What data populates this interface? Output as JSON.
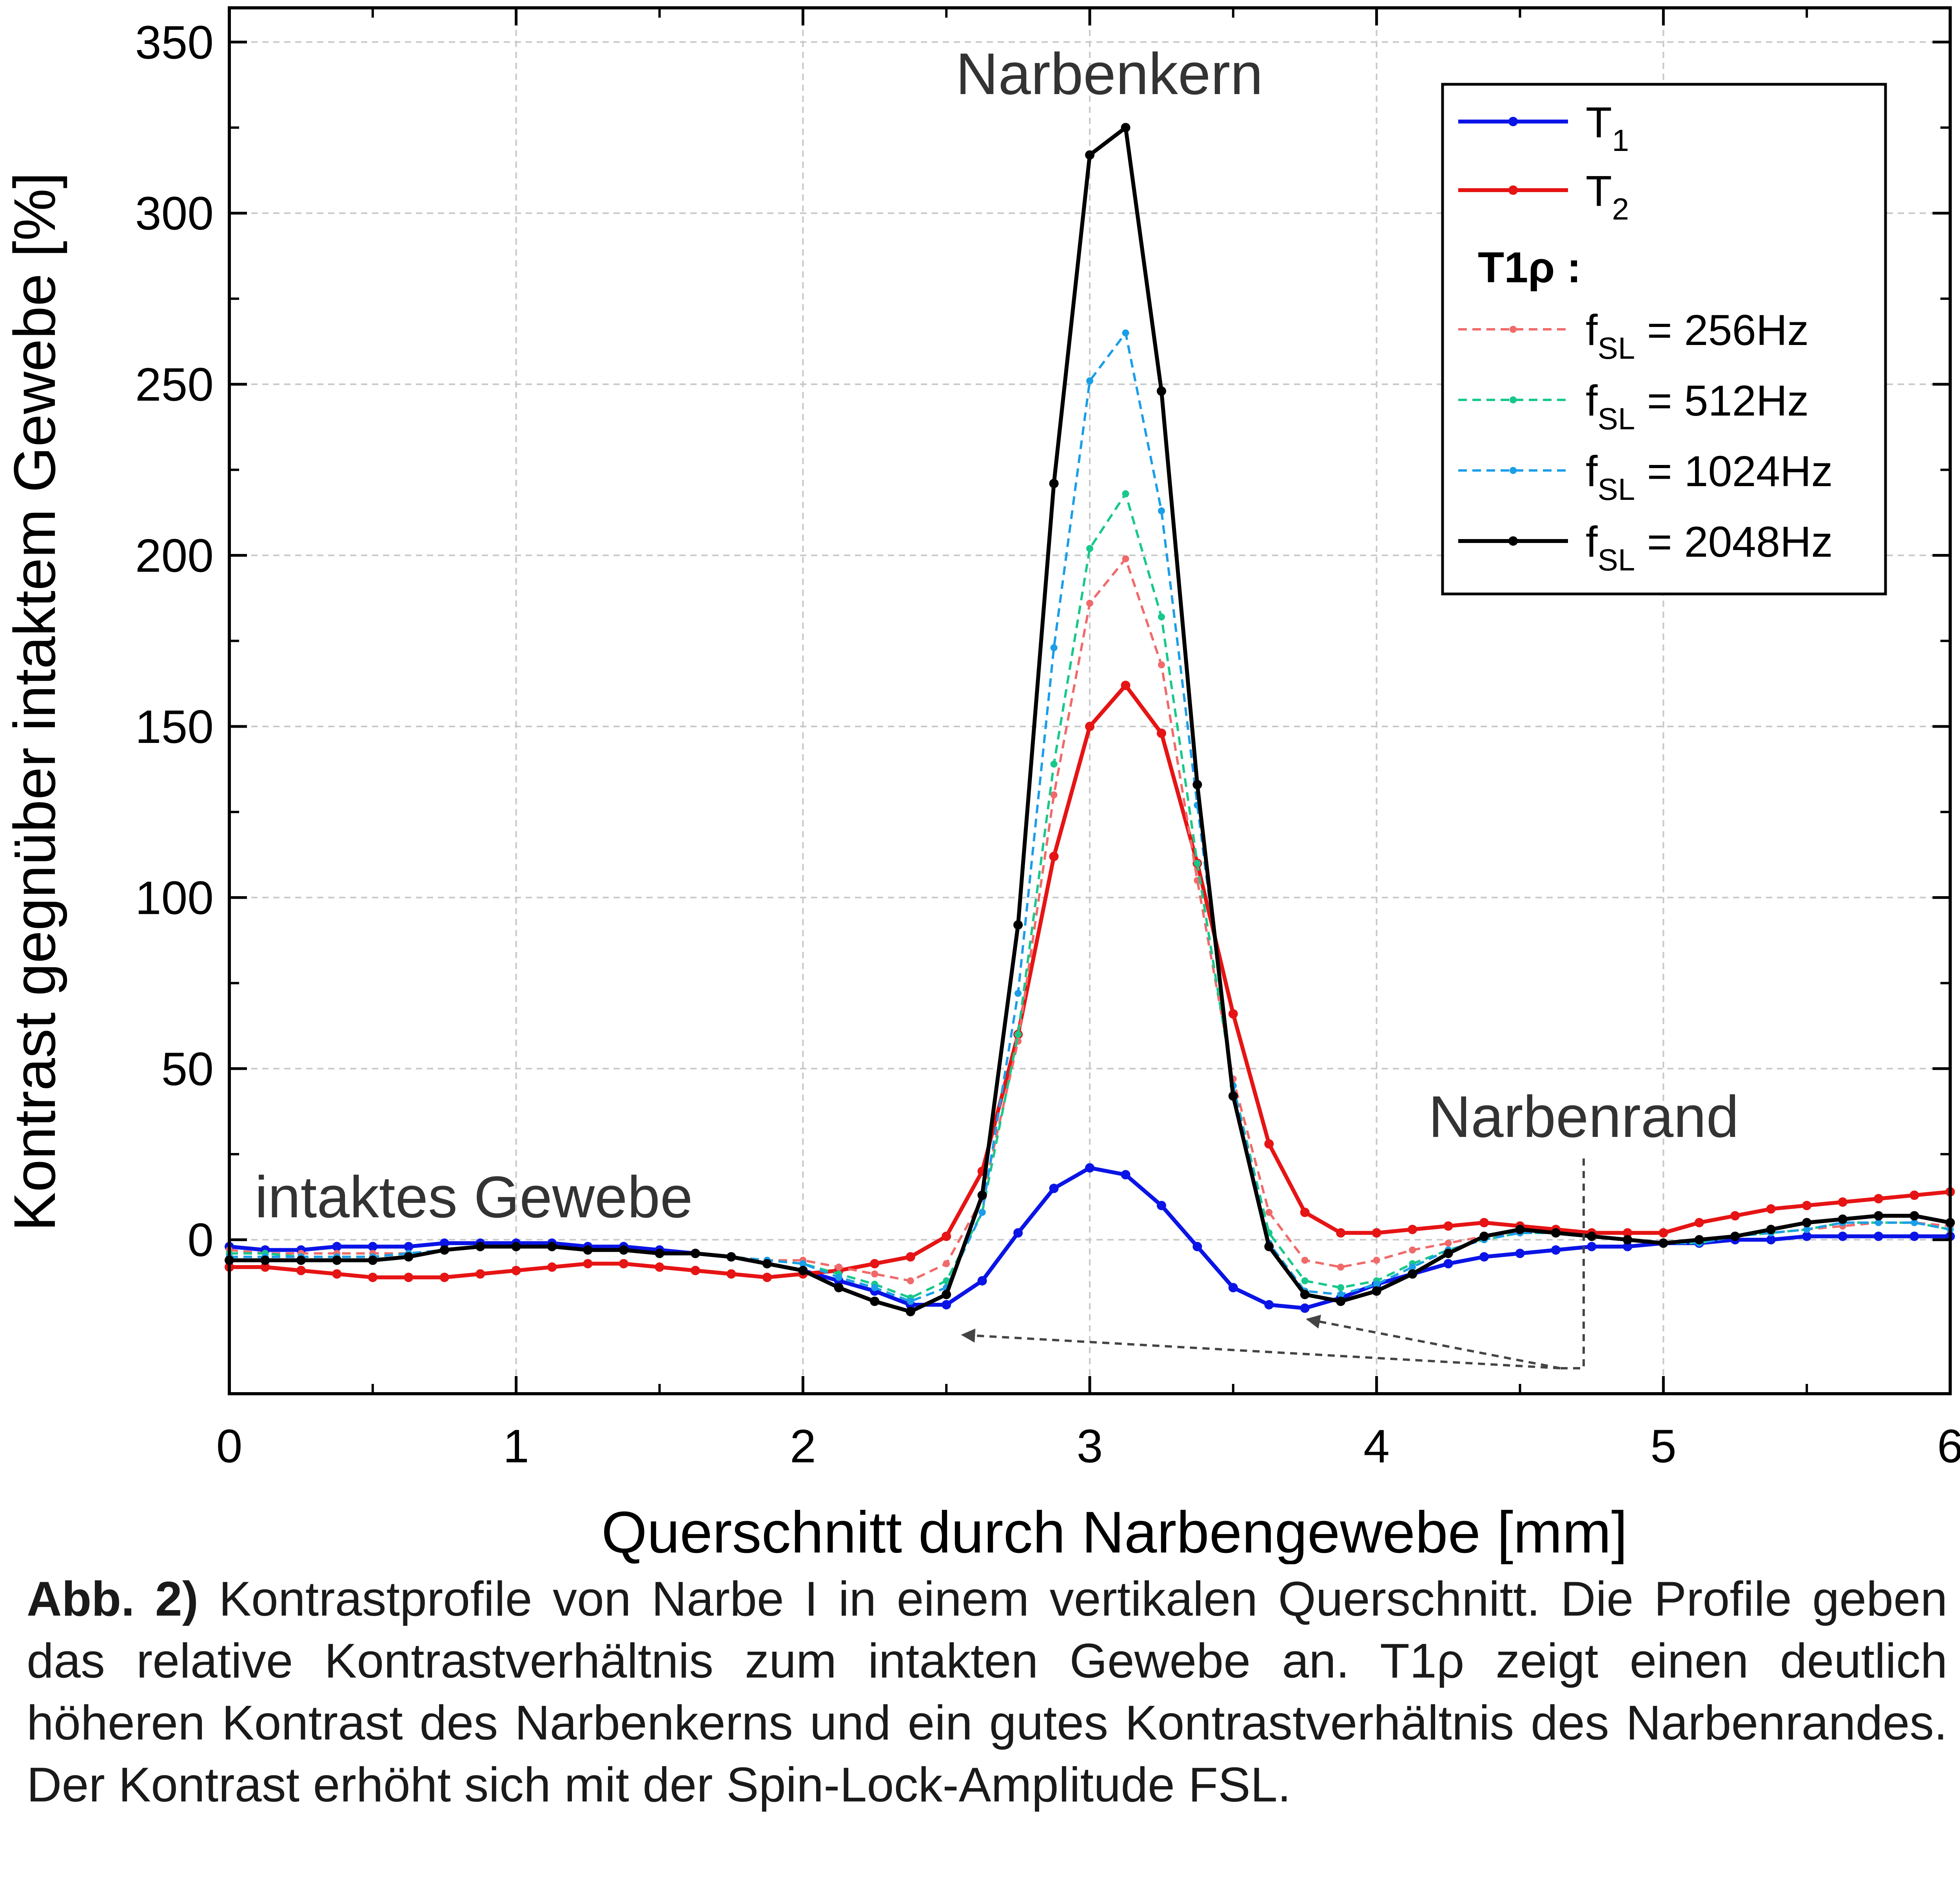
{
  "chart_data": {
    "type": "line",
    "xlabel": "Querschnitt durch Narbengewebe [mm]",
    "ylabel": "Kontrast gegnüber intaktem Gewebe [%]",
    "xlim": [
      0,
      6
    ],
    "ylim": [
      -45,
      360
    ],
    "x_ticks": [
      0,
      1,
      2,
      3,
      4,
      5,
      6
    ],
    "y_ticks": [
      0,
      50,
      100,
      150,
      200,
      250,
      300,
      350
    ],
    "grid": true,
    "legend_position": "top-right",
    "legend_group_title": "T1ρ :",
    "annotations": [
      "Narbenkern",
      "Narbenrand",
      "intaktes Gewebe"
    ],
    "x": [
      0,
      0.125,
      0.25,
      0.375,
      0.5,
      0.625,
      0.75,
      0.875,
      1.0,
      1.125,
      1.25,
      1.375,
      1.5,
      1.625,
      1.75,
      1.875,
      2.0,
      2.125,
      2.25,
      2.375,
      2.5,
      2.625,
      2.75,
      2.875,
      3.0,
      3.125,
      3.25,
      3.375,
      3.5,
      3.625,
      3.75,
      3.875,
      4.0,
      4.125,
      4.25,
      4.375,
      4.5,
      4.625,
      4.75,
      4.875,
      5.0,
      5.125,
      5.25,
      5.375,
      5.5,
      5.625,
      5.75,
      5.875,
      6.0
    ],
    "series": [
      {
        "name": "T",
        "sub": "1",
        "color": "#0a14e6",
        "dashed": false,
        "values": [
          -2,
          -3,
          -3,
          -2,
          -2,
          -2,
          -1,
          -1,
          -1,
          -1,
          -2,
          -2,
          -3,
          -4,
          -5,
          -7,
          -9,
          -12,
          -15,
          -19,
          -19,
          -12,
          2,
          15,
          21,
          19,
          10,
          -2,
          -14,
          -19,
          -20,
          -17,
          -13,
          -10,
          -7,
          -5,
          -4,
          -3,
          -2,
          -2,
          -1,
          -1,
          0,
          0,
          1,
          1,
          1,
          1,
          1
        ]
      },
      {
        "name": "T",
        "sub": "2",
        "color": "#e61414",
        "dashed": false,
        "values": [
          -8,
          -8,
          -9,
          -10,
          -11,
          -11,
          -11,
          -10,
          -9,
          -8,
          -7,
          -7,
          -8,
          -9,
          -10,
          -11,
          -10,
          -9,
          -7,
          -5,
          1,
          20,
          60,
          112,
          150,
          162,
          148,
          110,
          66,
          28,
          8,
          2,
          2,
          3,
          4,
          5,
          4,
          3,
          2,
          2,
          2,
          5,
          7,
          9,
          10,
          11,
          12,
          13,
          14
        ]
      },
      {
        "name": "f",
        "sub": "SL",
        "suffix": " = 256Hz",
        "color": "#f06a6a",
        "dashed": true,
        "values": [
          -3,
          -4,
          -4,
          -4,
          -4,
          -4,
          -3,
          -2,
          -2,
          -2,
          -3,
          -3,
          -4,
          -4,
          -5,
          -6,
          -6,
          -8,
          -10,
          -12,
          -7,
          12,
          58,
          130,
          186,
          199,
          168,
          105,
          47,
          8,
          -6,
          -8,
          -6,
          -3,
          -1,
          1,
          2,
          2,
          1,
          0,
          -1,
          0,
          1,
          2,
          3,
          4,
          5,
          5,
          4
        ]
      },
      {
        "name": "f",
        "sub": "SL",
        "suffix": " = 512Hz",
        "color": "#18c88a",
        "dashed": true,
        "values": [
          -4,
          -4,
          -5,
          -5,
          -5,
          -4,
          -3,
          -2,
          -2,
          -2,
          -3,
          -3,
          -4,
          -4,
          -5,
          -6,
          -7,
          -10,
          -13,
          -17,
          -12,
          8,
          60,
          139,
          202,
          218,
          182,
          110,
          45,
          2,
          -12,
          -14,
          -12,
          -7,
          -3,
          0,
          2,
          2,
          1,
          0,
          -1,
          -1,
          1,
          2,
          3,
          5,
          5,
          5,
          3
        ]
      },
      {
        "name": "f",
        "sub": "SL",
        "suffix": " = 1024Hz",
        "color": "#1a9ee8",
        "dashed": true,
        "values": [
          -5,
          -5,
          -5,
          -5,
          -5,
          -4,
          -3,
          -2,
          -2,
          -2,
          -3,
          -3,
          -4,
          -4,
          -5,
          -6,
          -7,
          -11,
          -14,
          -18,
          -14,
          8,
          72,
          173,
          251,
          265,
          213,
          127,
          45,
          -1,
          -15,
          -16,
          -13,
          -8,
          -3,
          0,
          2,
          2,
          1,
          0,
          -1,
          -1,
          1,
          2,
          3,
          5,
          5,
          5,
          3
        ]
      },
      {
        "name": "f",
        "sub": "SL",
        "suffix": " = 2048Hz",
        "color": "#000000",
        "dashed": false,
        "values": [
          -6,
          -6,
          -6,
          -6,
          -6,
          -5,
          -3,
          -2,
          -2,
          -2,
          -3,
          -3,
          -4,
          -4,
          -5,
          -7,
          -9,
          -14,
          -18,
          -21,
          -16,
          13,
          92,
          221,
          317,
          325,
          248,
          133,
          42,
          -2,
          -16,
          -18,
          -15,
          -10,
          -4,
          1,
          3,
          2,
          1,
          0,
          -1,
          0,
          1,
          3,
          5,
          6,
          7,
          7,
          5
        ]
      }
    ]
  },
  "caption": {
    "label": "Abb. 2)",
    "text": " Kontrastprofile von Narbe I in einem vertikalen Querschnitt. Die Profile geben das relative Kontrastverhältnis zum intakten Gewebe an. T1ρ zeigt einen deutlich höheren Kontrast des Narbenkerns und ein gutes Kontrastverhältnis des Narbenrandes. Der Kontrast erhöht sich mit der Spin-Lock-Amplitude FSL."
  }
}
